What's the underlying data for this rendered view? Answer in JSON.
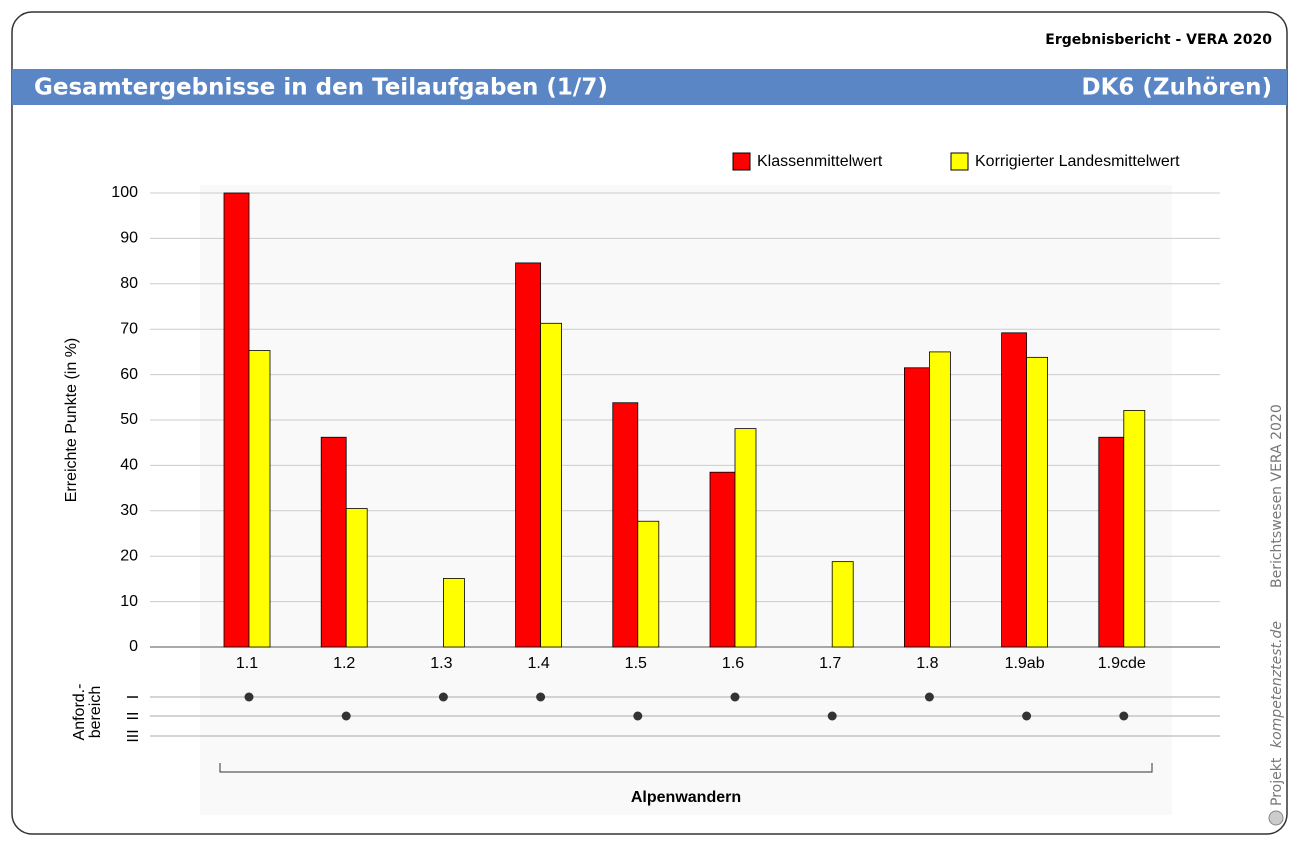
{
  "header": {
    "report": "Ergebnisbericht - VERA 2020",
    "title": "Gesamtergebnisse in den Teilaufgaben (1/7)",
    "subtitle": "DK6 (Zuhören)"
  },
  "side": {
    "project": "Projekt",
    "site": "kompetenztest.de",
    "note": "Berichtswesen VERA 2020"
  },
  "chart_data": {
    "type": "bar",
    "y_label": "Erreichte Punkte (in %)",
    "categories": [
      "1.1",
      "1.2",
      "1.3",
      "1.4",
      "1.5",
      "1.6",
      "1.7",
      "1.8",
      "1.9ab",
      "1.9cde"
    ],
    "series": [
      {
        "name": "Klassenmittelwert",
        "color": "#ff0000",
        "values": [
          100,
          46.2,
          0,
          84.6,
          53.8,
          38.5,
          0,
          61.5,
          69.2,
          46.2
        ]
      },
      {
        "name": "Korrigierter Landesmittelwert",
        "color": "#ffff00",
        "values": [
          65.3,
          30.5,
          15.1,
          71.3,
          27.7,
          48.1,
          18.8,
          65,
          63.8,
          52.1
        ]
      }
    ],
    "ylim": [
      0,
      100
    ],
    "yticks": [
      0,
      10,
      20,
      30,
      40,
      50,
      60,
      70,
      80,
      90,
      100
    ],
    "grid": true,
    "level_title": "Anford.-\nbereich",
    "levels": [
      "I",
      "II",
      "III"
    ],
    "category_levels": [
      "I",
      "II",
      "I",
      "I",
      "II",
      "I",
      "II",
      "I",
      "II",
      "II"
    ],
    "group": "Alpenwandern"
  }
}
